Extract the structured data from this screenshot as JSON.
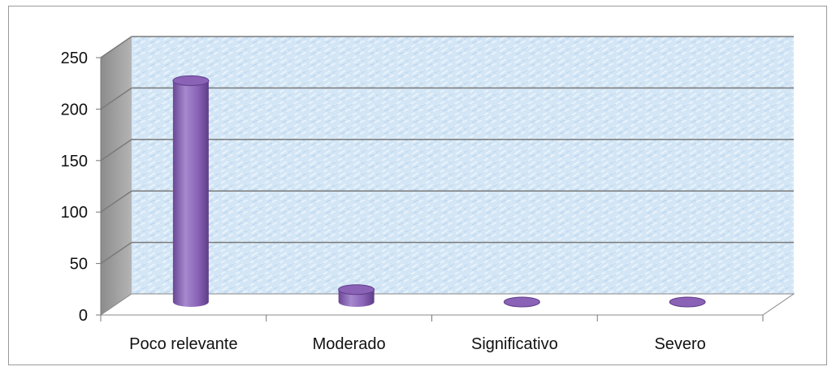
{
  "chart_data": {
    "type": "bar",
    "style": "3d-cylinder",
    "categories": [
      "Poco relevante",
      "Moderado",
      "Significativo",
      "Severo"
    ],
    "values": [
      215,
      12,
      0,
      0
    ],
    "yticks": [
      "0",
      "50",
      "100",
      "150",
      "200",
      "250"
    ],
    "ylim": [
      0,
      250
    ],
    "grid": true,
    "legend": "none",
    "colors": {
      "bar": "#8a62b6",
      "bar_dark": "#5e3d88",
      "bar_light": "#b59ad8",
      "wall": "#cfe3f4",
      "side_wall": "#9a9a9a",
      "gridline": "#7a7a7a"
    }
  }
}
